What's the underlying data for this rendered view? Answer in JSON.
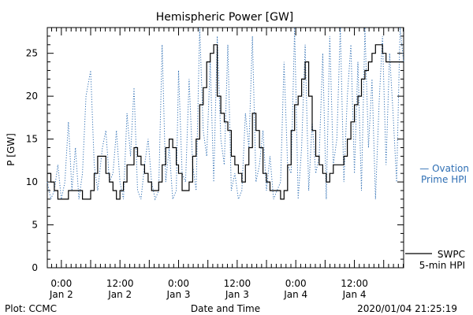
{
  "chart_data": {
    "type": "line",
    "title": "Hemispheric Power [GW]",
    "ylabel": "P [GW]",
    "xlabel": "Date and Time",
    "ylim": [
      0,
      28
    ],
    "xlim": [
      -0.12,
      2.92
    ],
    "x_unit": "days since 2020-01-02 00:00 UT",
    "yticks": [
      0,
      5,
      10,
      15,
      20,
      25
    ],
    "xticks": [
      {
        "x": 0.0,
        "time": "0:00",
        "date": "Jan 2"
      },
      {
        "x": 0.5,
        "time": "12:00",
        "date": "Jan 2"
      },
      {
        "x": 1.0,
        "time": "0:00",
        "date": "Jan 3"
      },
      {
        "x": 1.5,
        "time": "12:00",
        "date": "Jan 3"
      },
      {
        "x": 2.0,
        "time": "0:00",
        "date": "Jan 4"
      },
      {
        "x": 2.5,
        "time": "12:00",
        "date": "Jan 4"
      }
    ],
    "grid": false,
    "series": [
      {
        "name": "SWPC 5-min HPI",
        "label_lines": [
          "SWPC",
          "5-min HPI"
        ],
        "color": "#000000",
        "style": "solid",
        "x": [
          -0.12,
          -0.09,
          -0.06,
          -0.03,
          0.0,
          0.03,
          0.06,
          0.09,
          0.12,
          0.15,
          0.18,
          0.21,
          0.25,
          0.28,
          0.31,
          0.35,
          0.38,
          0.41,
          0.44,
          0.47,
          0.5,
          0.53,
          0.56,
          0.59,
          0.62,
          0.65,
          0.68,
          0.71,
          0.74,
          0.77,
          0.8,
          0.83,
          0.86,
          0.89,
          0.92,
          0.95,
          0.98,
          1.0,
          1.03,
          1.06,
          1.09,
          1.12,
          1.15,
          1.18,
          1.21,
          1.24,
          1.27,
          1.3,
          1.33,
          1.36,
          1.39,
          1.42,
          1.45,
          1.48,
          1.51,
          1.54,
          1.57,
          1.6,
          1.63,
          1.66,
          1.69,
          1.72,
          1.75,
          1.78,
          1.81,
          1.84,
          1.87,
          1.9,
          1.93,
          1.96,
          1.99,
          2.02,
          2.05,
          2.08,
          2.11,
          2.14,
          2.17,
          2.2,
          2.23,
          2.26,
          2.29,
          2.32,
          2.35,
          2.38,
          2.41,
          2.44,
          2.47,
          2.5,
          2.53,
          2.56,
          2.59,
          2.62,
          2.65,
          2.68,
          2.71,
          2.74,
          2.77,
          2.8,
          2.83,
          2.86,
          2.89,
          2.92
        ],
        "values": [
          11,
          10,
          9,
          8,
          8,
          8,
          9,
          9,
          9,
          9,
          8,
          8,
          9,
          11,
          13,
          13,
          11,
          10,
          9,
          8,
          9,
          10,
          12,
          12,
          14,
          13,
          12,
          11,
          10,
          9,
          9,
          10,
          12,
          14,
          15,
          14,
          12,
          11,
          9,
          9,
          10,
          13,
          15,
          19,
          21,
          24,
          25,
          26,
          20,
          18,
          17,
          16,
          13,
          12,
          11,
          10,
          12,
          14,
          18,
          16,
          14,
          11,
          10,
          9,
          9,
          9,
          8,
          9,
          12,
          16,
          19,
          20,
          22,
          24,
          20,
          16,
          13,
          12,
          11,
          10,
          11,
          12,
          12,
          12,
          13,
          15,
          17,
          19,
          20,
          22,
          23,
          24,
          25,
          26,
          26,
          25,
          24,
          24,
          24,
          24,
          24,
          24
        ],
        "note": "x values are approximate sample points"
      },
      {
        "name": "Ovation Prime HPI",
        "label_lines": [
          "— Ovation",
          "Prime HPI"
        ],
        "color": "#2f6fb4",
        "style": "dotted",
        "x": [
          -0.12,
          -0.09,
          -0.06,
          -0.03,
          0.0,
          0.03,
          0.06,
          0.09,
          0.12,
          0.15,
          0.18,
          0.21,
          0.25,
          0.28,
          0.31,
          0.35,
          0.38,
          0.41,
          0.44,
          0.47,
          0.5,
          0.53,
          0.56,
          0.59,
          0.62,
          0.65,
          0.68,
          0.71,
          0.74,
          0.77,
          0.8,
          0.83,
          0.86,
          0.89,
          0.92,
          0.95,
          0.98,
          1.0,
          1.03,
          1.06,
          1.09,
          1.12,
          1.15,
          1.18,
          1.21,
          1.24,
          1.27,
          1.3,
          1.33,
          1.36,
          1.39,
          1.42,
          1.45,
          1.48,
          1.51,
          1.54,
          1.57,
          1.6,
          1.63,
          1.66,
          1.69,
          1.72,
          1.75,
          1.78,
          1.81,
          1.84,
          1.87,
          1.9,
          1.93,
          1.96,
          1.99,
          2.02,
          2.05,
          2.08,
          2.11,
          2.14,
          2.17,
          2.2,
          2.23,
          2.26,
          2.29,
          2.32,
          2.35,
          2.38,
          2.41,
          2.44,
          2.47,
          2.5,
          2.53,
          2.56,
          2.59,
          2.62,
          2.65,
          2.68,
          2.71,
          2.74,
          2.77,
          2.8,
          2.83,
          2.86,
          2.89,
          2.92
        ],
        "values": [
          10,
          8,
          9,
          12,
          8,
          10,
          17,
          9,
          14,
          8,
          11,
          20,
          23,
          12,
          9,
          14,
          16,
          10,
          11,
          16,
          10,
          8,
          18,
          13,
          21,
          9,
          8,
          12,
          15,
          10,
          8,
          9,
          26,
          10,
          14,
          8,
          9,
          23,
          11,
          10,
          22,
          12,
          9,
          28,
          16,
          13,
          24,
          10,
          27,
          15,
          12,
          26,
          9,
          11,
          8,
          9,
          18,
          14,
          27,
          10,
          12,
          16,
          9,
          13,
          8,
          9,
          10,
          24,
          12,
          11,
          28,
          8,
          14,
          26,
          9,
          17,
          11,
          13,
          25,
          8,
          27,
          12,
          15,
          28,
          10,
          20,
          26,
          11,
          24,
          9,
          28,
          14,
          22,
          8,
          19,
          27,
          12,
          25,
          18,
          10,
          28,
          24
        ],
        "note": "x values are approximate sample points"
      }
    ],
    "footer": {
      "left": "Plot: CCMC",
      "center": "Date and Time",
      "right": "2020/01/04 21:25:19"
    }
  }
}
